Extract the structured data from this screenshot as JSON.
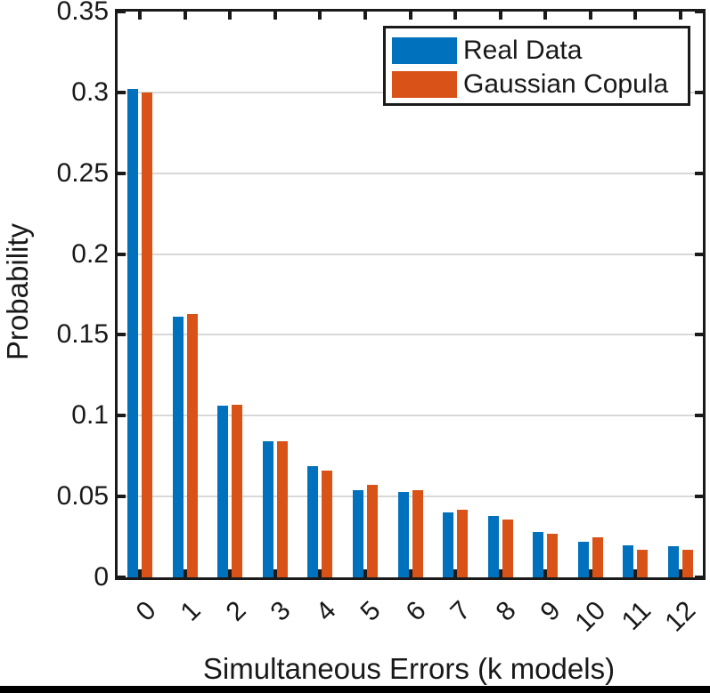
{
  "chart_data": {
    "type": "bar",
    "title": "",
    "xlabel": "Simultaneous Errors (k models)",
    "ylabel": "Probability",
    "categories": [
      "0",
      "1",
      "2",
      "3",
      "4",
      "5",
      "6",
      "7",
      "8",
      "9",
      "10",
      "11",
      "12"
    ],
    "series": [
      {
        "name": "Real Data",
        "color": "#0072BD",
        "values": [
          0.302,
          0.161,
          0.106,
          0.084,
          0.069,
          0.054,
          0.053,
          0.04,
          0.038,
          0.028,
          0.022,
          0.02,
          0.019
        ]
      },
      {
        "name": "Gaussian Copula",
        "color": "#D95319",
        "values": [
          0.3,
          0.163,
          0.107,
          0.084,
          0.066,
          0.057,
          0.054,
          0.042,
          0.036,
          0.027,
          0.025,
          0.017,
          0.017
        ]
      }
    ],
    "ylim": [
      0,
      0.35
    ],
    "yticks": [
      0,
      0.05,
      0.1,
      0.15,
      0.2,
      0.25,
      0.3,
      0.35
    ],
    "ytick_labels": [
      "0",
      "0.05",
      "0.1",
      "0.15",
      "0.2",
      "0.25",
      "0.3",
      "0.35"
    ],
    "grid": "horizontal",
    "grid_color": "#d8d8d8",
    "axis_color": "#1a1a1a",
    "text_color": "#191919",
    "legend_position": "top-right",
    "tick_direction": "in"
  }
}
